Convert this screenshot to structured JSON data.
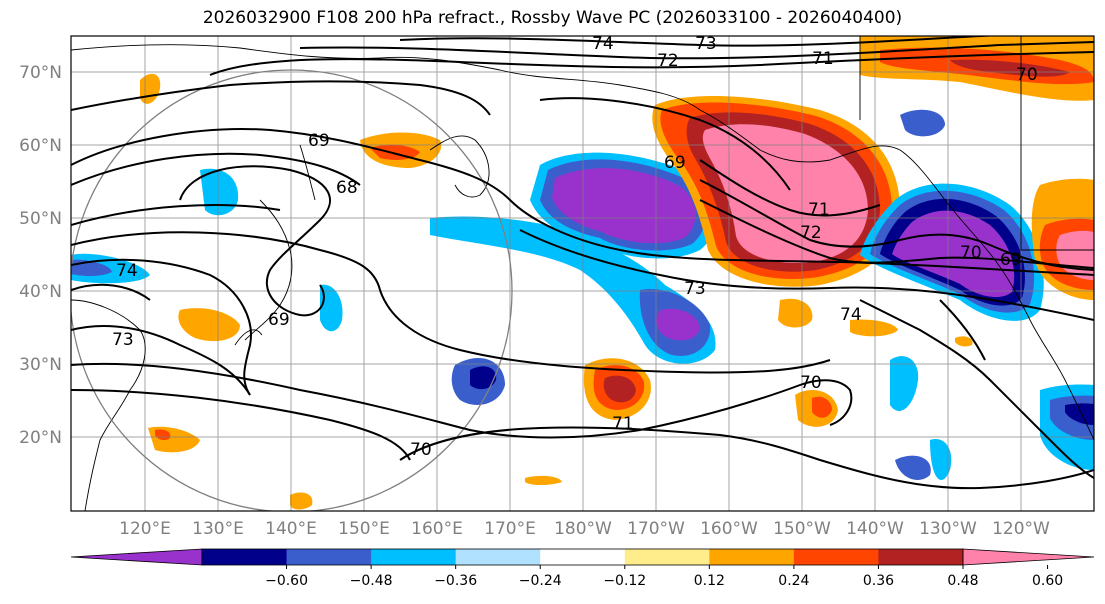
{
  "title": "2026032900 F108 200 hPa refract., Rossby Wave PC (2026033100 - 2026040400)",
  "map": {
    "lat_labels": [
      "70°N",
      "60°N",
      "50°N",
      "40°N",
      "30°N",
      "20°N"
    ],
    "lon_labels": [
      "120°E",
      "130°E",
      "140°E",
      "150°E",
      "160°E",
      "170°E",
      "180°W",
      "170°W",
      "160°W",
      "150°W",
      "140°W",
      "130°W",
      "120°W"
    ],
    "contour_labels": [
      "74",
      "73",
      "72",
      "71",
      "70",
      "69",
      "68",
      "69",
      "71",
      "72",
      "73",
      "74",
      "70",
      "71",
      "70",
      "69",
      "74",
      "73",
      "70",
      "69"
    ]
  },
  "colorbar": {
    "ticks": [
      "−0.60",
      "−0.48",
      "−0.36",
      "−0.24",
      "−0.12",
      "0.12",
      "0.24",
      "0.36",
      "0.48",
      "0.60"
    ],
    "colors": [
      "#9932CC",
      "#00008B",
      "#3A5FCD",
      "#00BFFF",
      "#B0E2FF",
      "#FFFFFF",
      "#FFEC8B",
      "#FFA500",
      "#FF4500",
      "#B22222",
      "#FF82AB"
    ]
  }
}
